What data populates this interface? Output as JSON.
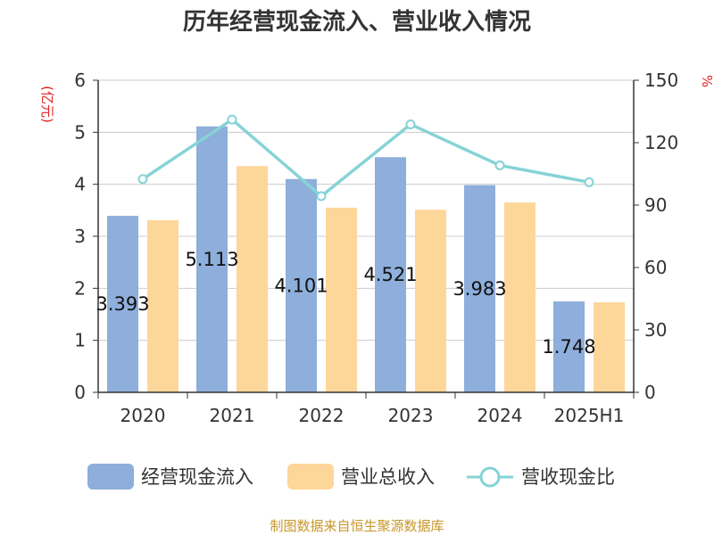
{
  "colors": {
    "cash_bar": "#8eaedb",
    "revenue_bar": "#fdd699",
    "ratio_line": "#86d3d6",
    "grid": "#cccccc",
    "axis": "#333333",
    "unit_text": "#e02020",
    "source_text": "#c8962a"
  },
  "source": "制图数据来自恒生聚源数据库",
  "chart_data": {
    "type": "bar",
    "title": "历年经营现金流入、营业收入情况",
    "categories": [
      "2020",
      "2021",
      "2022",
      "2023",
      "2024",
      "2025H1"
    ],
    "series": [
      {
        "name": "经营现金流入",
        "type": "bar",
        "axis": "left",
        "values": [
          3.393,
          5.113,
          4.101,
          4.521,
          3.983,
          1.748
        ],
        "data_labels": [
          "3.393",
          "5.113",
          "4.101",
          "4.521",
          "3.983",
          "1.748"
        ]
      },
      {
        "name": "营业总收入",
        "type": "bar",
        "axis": "left",
        "values": [
          3.31,
          4.35,
          3.55,
          3.51,
          3.65,
          1.73
        ]
      },
      {
        "name": "营收现金比",
        "type": "line",
        "axis": "right",
        "values": [
          102.5,
          131.1,
          94.3,
          128.8,
          109.1,
          101.0
        ]
      }
    ],
    "y_left": {
      "label": "(亿元)",
      "ylim": [
        0,
        6
      ],
      "ticks": [
        "0",
        "1",
        "2",
        "3",
        "4",
        "5",
        "6"
      ]
    },
    "y_right": {
      "label": "%",
      "ylim": [
        0,
        150
      ],
      "ticks": [
        "0",
        "30",
        "60",
        "90",
        "120",
        "150"
      ]
    },
    "grid": true,
    "legend": {
      "position": "bottom",
      "items": [
        "经营现金流入",
        "营业总收入",
        "营收现金比"
      ]
    }
  }
}
